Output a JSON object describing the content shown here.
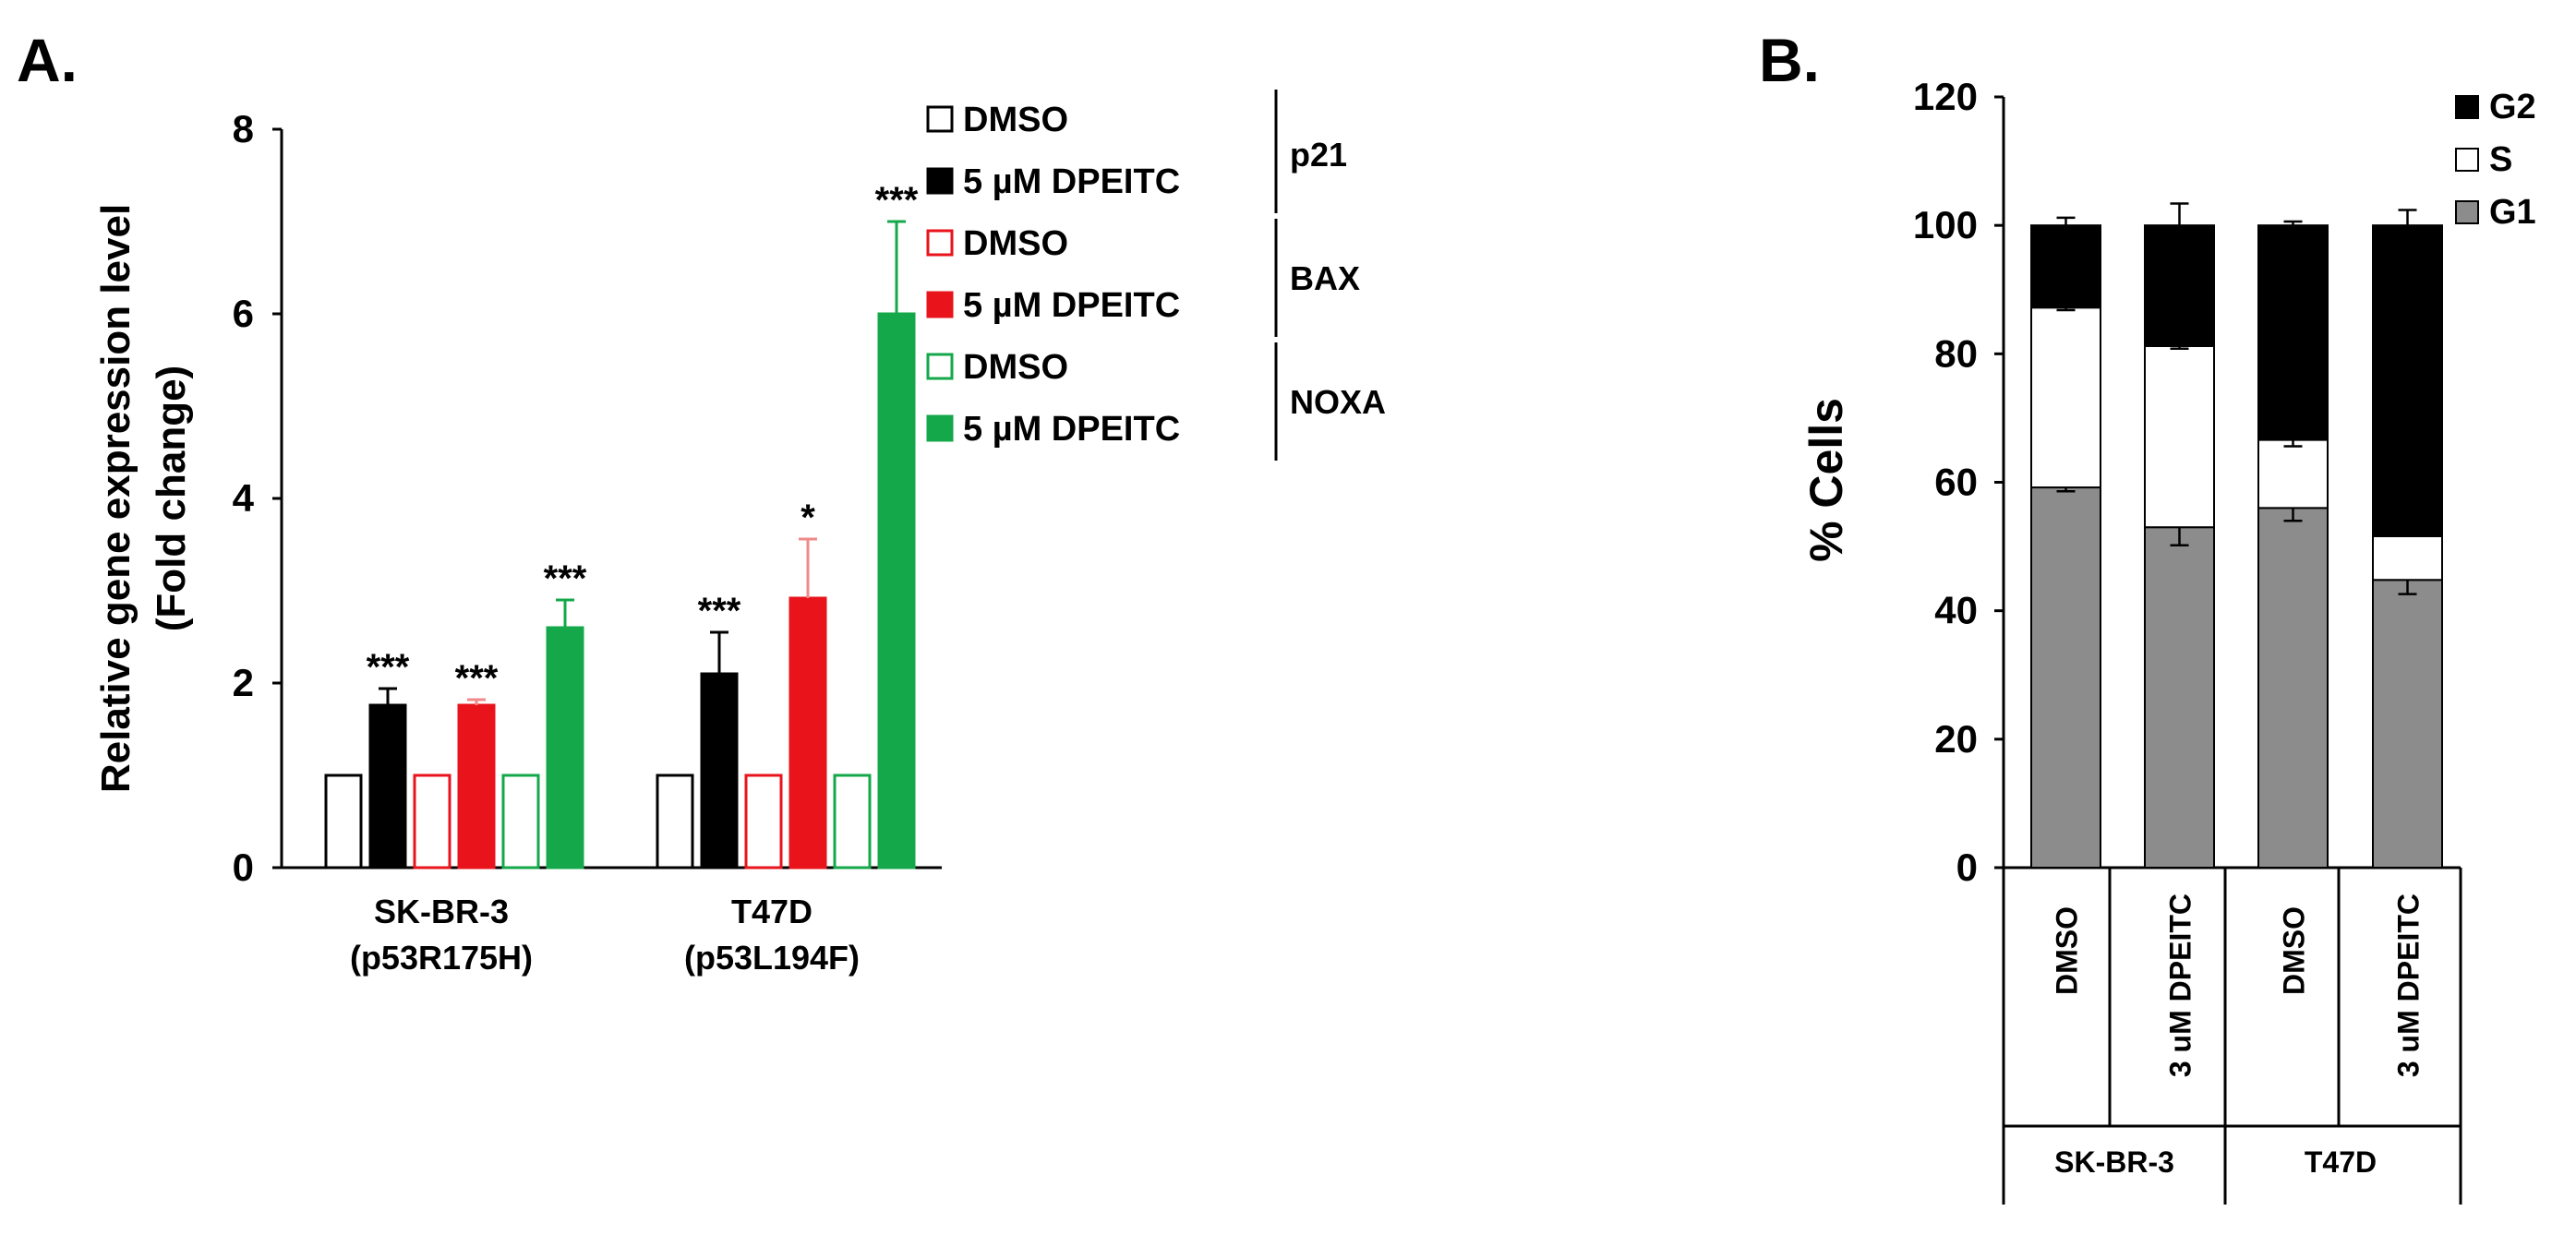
{
  "panels": {
    "a_label": "A.",
    "b_label": "B."
  },
  "chart_data": [
    {
      "type": "bar",
      "panel": "A.",
      "ylabel_line1": "Relative gene expression level",
      "ylabel_line2": "(Fold change)",
      "ylim": [
        0,
        8
      ],
      "yticks": [
        "0",
        "2",
        "4",
        "6",
        "8"
      ],
      "groups": [
        {
          "line1": "SK-BR-3",
          "line2": "(p53R175H)"
        },
        {
          "line1": "T47D",
          "line2": "(p53L194F)"
        }
      ],
      "series": [
        {
          "name": "DMSO",
          "gene": "p21",
          "color": "#000000",
          "filled": false,
          "values": [
            1,
            1
          ],
          "errors": [
            0,
            0
          ],
          "sig": [
            "",
            ""
          ]
        },
        {
          "name": "5 µM DPEITC",
          "gene": "p21",
          "color": "#000000",
          "filled": true,
          "values": [
            1.76,
            2.1
          ],
          "errors": [
            0.18,
            0.45
          ],
          "sig": [
            "***",
            "***"
          ]
        },
        {
          "name": "DMSO",
          "gene": "BAX",
          "color": "#e8131b",
          "filled": false,
          "values": [
            1,
            1
          ],
          "errors": [
            0,
            0
          ],
          "sig": [
            "",
            ""
          ]
        },
        {
          "name": "5 µM DPEITC",
          "gene": "BAX",
          "color": "#e8131b",
          "filled": true,
          "values": [
            1.76,
            2.92
          ],
          "errors": [
            0.06,
            0.64
          ],
          "sig": [
            "***",
            "*"
          ]
        },
        {
          "name": "DMSO",
          "gene": "NOXA",
          "color": "#14a84a",
          "filled": false,
          "values": [
            1,
            1
          ],
          "errors": [
            0,
            0
          ],
          "sig": [
            "",
            ""
          ]
        },
        {
          "name": "5 µM DPEITC",
          "gene": "NOXA",
          "color": "#14a84a",
          "filled": true,
          "values": [
            2.6,
            6.0
          ],
          "errors": [
            0.3,
            1.0
          ],
          "sig": [
            "***",
            "***"
          ]
        }
      ],
      "genes": [
        "p21",
        "BAX",
        "NOXA"
      ]
    },
    {
      "type": "bar",
      "stacked": true,
      "panel": "B.",
      "ylabel": "% Cells",
      "ylim": [
        0,
        120
      ],
      "yticks": [
        "0",
        "20",
        "40",
        "60",
        "80",
        "100",
        "120"
      ],
      "categories": [
        "DMSO",
        "3 uM DPEITC",
        "DMSO",
        "3 uM  DPEITC"
      ],
      "cell_lines": [
        "SK-BR-3",
        "T47D"
      ],
      "series": [
        {
          "name": "G1",
          "color": "#8c8c8c",
          "values": [
            59.2,
            53.0,
            56.0,
            44.8
          ],
          "errors": [
            0.6,
            2.8,
            2.0,
            2.2
          ]
        },
        {
          "name": "S",
          "color": "#ffffff",
          "values": [
            28.0,
            28.2,
            10.6,
            6.8
          ],
          "errors": [
            0.4,
            0.4,
            1.0,
            0
          ]
        },
        {
          "name": "G2",
          "color": "#000000",
          "values": [
            12.8,
            18.8,
            33.4,
            48.4
          ],
          "errors": [
            1.2,
            3.4,
            0.6,
            2.4
          ]
        }
      ],
      "legend_order": [
        "G2",
        "S",
        "G1"
      ]
    }
  ]
}
